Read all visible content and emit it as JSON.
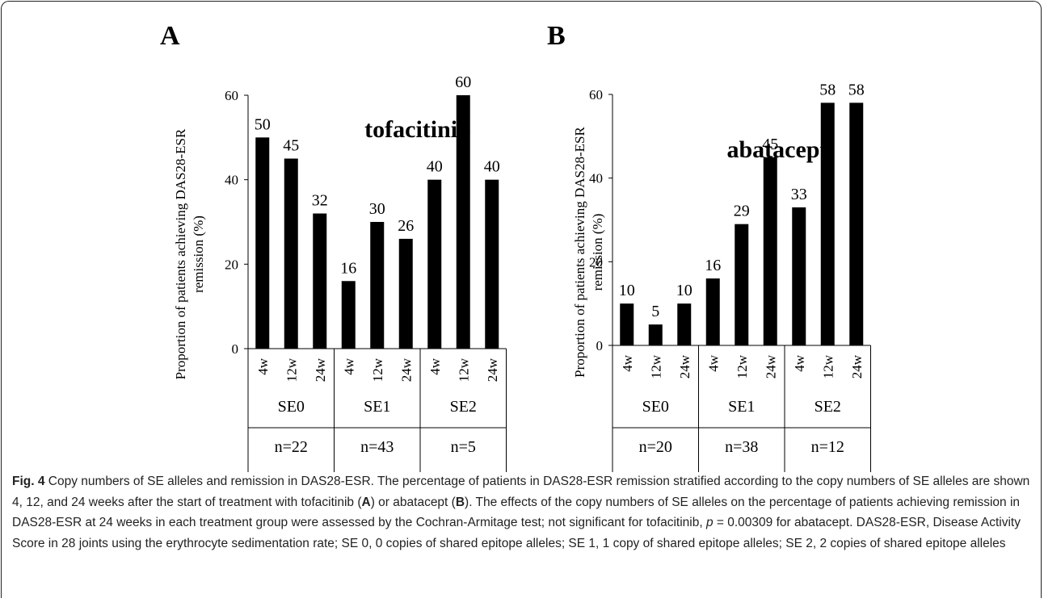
{
  "chart_data": [
    {
      "type": "bar",
      "panel_label": "A",
      "title": "tofacitinib",
      "ylabel": "Proportion of patients achieving DAS28-ESR remission  (%)",
      "ylim": [
        0,
        60
      ],
      "yticks": [
        0,
        20,
        40,
        60
      ],
      "categories": [
        "4w",
        "12w",
        "24w",
        "4w",
        "12w",
        "24w",
        "4w",
        "12w",
        "24w"
      ],
      "values": [
        50,
        45,
        32,
        16,
        30,
        26,
        40,
        60,
        40
      ],
      "value_labels": [
        "50",
        "45",
        "32",
        "16",
        "30",
        "26",
        "40",
        "60",
        "40"
      ],
      "groups": [
        {
          "name": "SE0",
          "n": "n=22"
        },
        {
          "name": "SE1",
          "n": "n=43"
        },
        {
          "name": "SE2",
          "n": "n=5"
        }
      ]
    },
    {
      "type": "bar",
      "panel_label": "B",
      "title": "abatacept",
      "ylabel": "Proportion of patients achieving DAS28-ESR remission  (%)",
      "ylim": [
        0,
        60
      ],
      "yticks": [
        0,
        20,
        40,
        60
      ],
      "categories": [
        "4w",
        "12w",
        "24w",
        "4w",
        "12w",
        "24w",
        "4w",
        "12w",
        "24w"
      ],
      "values": [
        10,
        5,
        10,
        16,
        29,
        45,
        33,
        58,
        58
      ],
      "value_labels": [
        "10",
        "5",
        "10",
        "16",
        "29",
        "45",
        "33",
        "58",
        "58"
      ],
      "groups": [
        {
          "name": "SE0",
          "n": "n=20"
        },
        {
          "name": "SE1",
          "n": "n=38"
        },
        {
          "name": "SE2",
          "n": "n=12"
        }
      ]
    }
  ],
  "caption": {
    "label": "Fig. 4",
    "parts": [
      {
        "t": " Copy numbers of SE alleles and remission in DAS28-ESR. The percentage of patients in DAS28-ESR remission stratified according to the copy numbers of SE alleles are shown 4, 12, and 24 weeks after the start of treatment with tofacitinib ("
      },
      {
        "t": "A",
        "b": true
      },
      {
        "t": ") or abatacept ("
      },
      {
        "t": "B",
        "b": true
      },
      {
        "t": "). The effects of the copy numbers of SE alleles on the percentage of patients achieving remission in DAS28-ESR at 24 weeks in each treatment group were assessed by the Cochran-Armitage test; not significant for tofacitinib, "
      },
      {
        "t": "p",
        "i": true
      },
      {
        "t": " = 0.00309 for abatacept. DAS28-ESR, Disease Activity Score in 28 joints using the erythrocyte sedimentation rate; SE 0, 0 copies of shared epitope alleles; SE 1, 1 copy of shared epitope alleles; SE 2, 2 copies of shared epitope alleles"
      }
    ]
  }
}
